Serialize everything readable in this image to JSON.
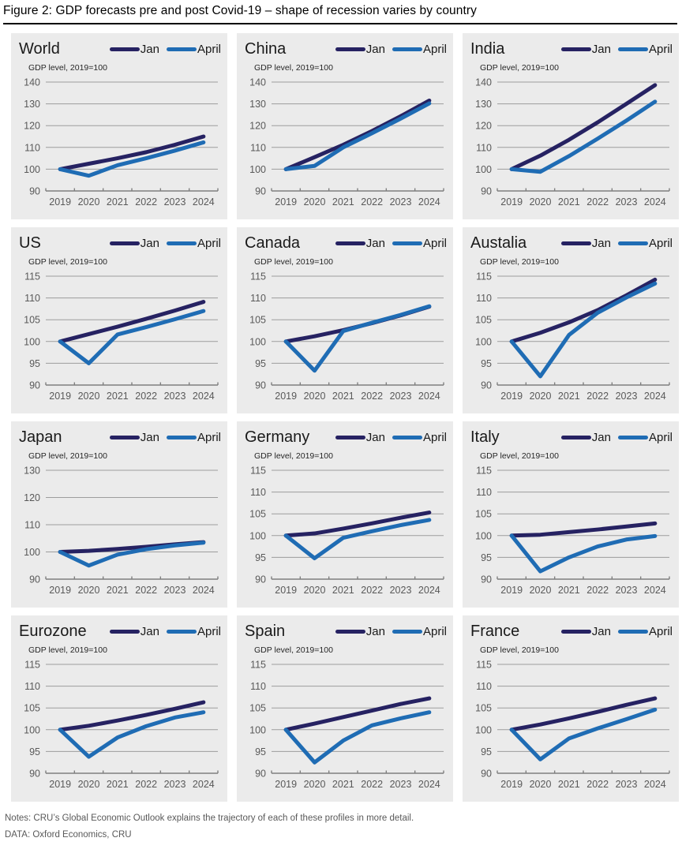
{
  "figure_title": "Figure 2: GDP forecasts pre and post Covid-19 – shape of recession varies by country",
  "notes": {
    "line1": "Notes: CRU’s Global Economic Outlook explains the trajectory of each of these profiles in more detail.",
    "line2": "DATA: Oxford Economics, CRU"
  },
  "colors": {
    "jan_line": "#262262",
    "april_line": "#1f6cb4",
    "panel_bg": "#ebebeb",
    "gridline": "#9d9d9d",
    "axis": "#7f7f7f",
    "tick_label": "#595959",
    "title_text": "#1a1a1a"
  },
  "legend_labels": [
    "Jan",
    "April"
  ],
  "subtitle_text": "GDP level, 2019=100",
  "chart_data": [
    {
      "type": "line",
      "title": "World",
      "subtitle": "GDP level, 2019=100",
      "categories": [
        "2019",
        "2020",
        "2021",
        "2022",
        "2023",
        "2024"
      ],
      "ylim": [
        90,
        140
      ],
      "yticks": [
        90,
        100,
        110,
        120,
        130,
        140
      ],
      "grid": true,
      "legend_position": "top-right",
      "series": [
        {
          "name": "Jan",
          "color": "#262262",
          "values": [
            100,
            102.5,
            105,
            107.8,
            111.2,
            115
          ]
        },
        {
          "name": "April",
          "color": "#1f6cb4",
          "values": [
            100,
            97,
            101.8,
            105,
            108.5,
            112.3
          ]
        }
      ]
    },
    {
      "type": "line",
      "title": "China",
      "subtitle": "GDP level, 2019=100",
      "categories": [
        "2019",
        "2020",
        "2021",
        "2022",
        "2023",
        "2024"
      ],
      "ylim": [
        90,
        140
      ],
      "yticks": [
        90,
        100,
        110,
        120,
        130,
        140
      ],
      "grid": true,
      "legend_position": "top-right",
      "series": [
        {
          "name": "Jan",
          "color": "#262262",
          "values": [
            100,
            105.5,
            111.2,
            117.5,
            124.3,
            131.5
          ]
        },
        {
          "name": "April",
          "color": "#1f6cb4",
          "values": [
            100,
            101.5,
            110,
            116.5,
            123.2,
            130.2
          ]
        }
      ]
    },
    {
      "type": "line",
      "title": "India",
      "subtitle": "GDP level, 2019=100",
      "categories": [
        "2019",
        "2020",
        "2021",
        "2022",
        "2023",
        "2024"
      ],
      "ylim": [
        90,
        140
      ],
      "yticks": [
        90,
        100,
        110,
        120,
        130,
        140
      ],
      "grid": true,
      "legend_position": "top-right",
      "series": [
        {
          "name": "Jan",
          "color": "#262262",
          "values": [
            100,
            106.2,
            113.5,
            121.5,
            130,
            138.6
          ]
        },
        {
          "name": "April",
          "color": "#1f6cb4",
          "values": [
            100,
            98.8,
            106,
            114,
            122.3,
            131
          ]
        }
      ]
    },
    {
      "type": "line",
      "title": "US",
      "subtitle": "GDP level, 2019=100",
      "categories": [
        "2019",
        "2020",
        "2021",
        "2022",
        "2023",
        "2024"
      ],
      "ylim": [
        90,
        115
      ],
      "yticks": [
        90,
        95,
        100,
        105,
        110,
        115
      ],
      "grid": true,
      "legend_position": "top-right",
      "series": [
        {
          "name": "Jan",
          "color": "#262262",
          "values": [
            100,
            101.7,
            103.4,
            105.2,
            107.1,
            109.1
          ]
        },
        {
          "name": "April",
          "color": "#1f6cb4",
          "values": [
            100,
            95,
            101.6,
            103.3,
            105.1,
            107
          ]
        }
      ]
    },
    {
      "type": "line",
      "title": "Canada",
      "subtitle": "GDP level, 2019=100",
      "categories": [
        "2019",
        "2020",
        "2021",
        "2022",
        "2023",
        "2024"
      ],
      "ylim": [
        90,
        115
      ],
      "yticks": [
        90,
        95,
        100,
        105,
        110,
        115
      ],
      "grid": true,
      "legend_position": "top-right",
      "series": [
        {
          "name": "Jan",
          "color": "#262262",
          "values": [
            100,
            101.2,
            102.6,
            104.2,
            106,
            108
          ]
        },
        {
          "name": "April",
          "color": "#1f6cb4",
          "values": [
            100,
            93.3,
            102.4,
            104.3,
            106.1,
            108.1
          ]
        }
      ]
    },
    {
      "type": "line",
      "title": "Austalia",
      "subtitle": "GDP level, 2019=100",
      "categories": [
        "2019",
        "2020",
        "2021",
        "2022",
        "2023",
        "2024"
      ],
      "ylim": [
        90,
        115
      ],
      "yticks": [
        90,
        95,
        100,
        105,
        110,
        115
      ],
      "grid": true,
      "legend_position": "top-right",
      "series": [
        {
          "name": "Jan",
          "color": "#262262",
          "values": [
            100,
            102,
            104.4,
            107.2,
            110.6,
            114.2
          ]
        },
        {
          "name": "April",
          "color": "#1f6cb4",
          "values": [
            100,
            92,
            101.5,
            106.6,
            110.1,
            113.3
          ]
        }
      ]
    },
    {
      "type": "line",
      "title": "Japan",
      "subtitle": "GDP level, 2019=100",
      "categories": [
        "2019",
        "2020",
        "2021",
        "2022",
        "2023",
        "2024"
      ],
      "ylim": [
        90,
        130
      ],
      "yticks": [
        90,
        100,
        110,
        120,
        130
      ],
      "grid": true,
      "legend_position": "top-right",
      "series": [
        {
          "name": "Jan",
          "color": "#262262",
          "values": [
            100,
            100.4,
            101.1,
            101.9,
            102.8,
            103.6
          ]
        },
        {
          "name": "April",
          "color": "#1f6cb4",
          "values": [
            100,
            95,
            99,
            101,
            102.4,
            103.4
          ]
        }
      ]
    },
    {
      "type": "line",
      "title": "Germany",
      "subtitle": "GDP level, 2019=100",
      "categories": [
        "2019",
        "2020",
        "2021",
        "2022",
        "2023",
        "2024"
      ],
      "ylim": [
        90,
        115
      ],
      "yticks": [
        90,
        95,
        100,
        105,
        110,
        115
      ],
      "grid": true,
      "legend_position": "top-right",
      "series": [
        {
          "name": "Jan",
          "color": "#262262",
          "values": [
            100,
            100.5,
            101.6,
            102.8,
            104.1,
            105.3
          ]
        },
        {
          "name": "April",
          "color": "#1f6cb4",
          "values": [
            100,
            94.8,
            99.5,
            101,
            102.4,
            103.6
          ]
        }
      ]
    },
    {
      "type": "line",
      "title": "Italy",
      "subtitle": "GDP level, 2019=100",
      "categories": [
        "2019",
        "2020",
        "2021",
        "2022",
        "2023",
        "2024"
      ],
      "ylim": [
        90,
        115
      ],
      "yticks": [
        90,
        95,
        100,
        105,
        110,
        115
      ],
      "grid": true,
      "legend_position": "top-right",
      "series": [
        {
          "name": "Jan",
          "color": "#262262",
          "values": [
            100,
            100.2,
            100.8,
            101.4,
            102.1,
            102.8
          ]
        },
        {
          "name": "April",
          "color": "#1f6cb4",
          "values": [
            100,
            91.8,
            95,
            97.5,
            99.1,
            99.9
          ]
        }
      ]
    },
    {
      "type": "line",
      "title": "Eurozone",
      "subtitle": "GDP level, 2019=100",
      "categories": [
        "2019",
        "2020",
        "2021",
        "2022",
        "2023",
        "2024"
      ],
      "ylim": [
        90,
        115
      ],
      "yticks": [
        90,
        95,
        100,
        105,
        110,
        115
      ],
      "grid": true,
      "legend_position": "top-right",
      "series": [
        {
          "name": "Jan",
          "color": "#262262",
          "values": [
            100,
            100.9,
            102.1,
            103.4,
            104.8,
            106.3
          ]
        },
        {
          "name": "April",
          "color": "#1f6cb4",
          "values": [
            100,
            93.8,
            98.2,
            100.8,
            102.8,
            104
          ]
        }
      ]
    },
    {
      "type": "line",
      "title": "Spain",
      "subtitle": "GDP level, 2019=100",
      "categories": [
        "2019",
        "2020",
        "2021",
        "2022",
        "2023",
        "2024"
      ],
      "ylim": [
        90,
        115
      ],
      "yticks": [
        90,
        95,
        100,
        105,
        110,
        115
      ],
      "grid": true,
      "legend_position": "top-right",
      "series": [
        {
          "name": "Jan",
          "color": "#262262",
          "values": [
            100,
            101.4,
            102.9,
            104.4,
            105.9,
            107.2
          ]
        },
        {
          "name": "April",
          "color": "#1f6cb4",
          "values": [
            100,
            92.5,
            97.5,
            101,
            102.6,
            104
          ]
        }
      ]
    },
    {
      "type": "line",
      "title": "France",
      "subtitle": "GDP level, 2019=100",
      "categories": [
        "2019",
        "2020",
        "2021",
        "2022",
        "2023",
        "2024"
      ],
      "ylim": [
        90,
        115
      ],
      "yticks": [
        90,
        95,
        100,
        105,
        110,
        115
      ],
      "grid": true,
      "legend_position": "top-right",
      "series": [
        {
          "name": "Jan",
          "color": "#262262",
          "values": [
            100,
            101.2,
            102.6,
            104.1,
            105.7,
            107.2
          ]
        },
        {
          "name": "April",
          "color": "#1f6cb4",
          "values": [
            100,
            93.2,
            98,
            100.3,
            102.4,
            104.6
          ]
        }
      ]
    }
  ]
}
